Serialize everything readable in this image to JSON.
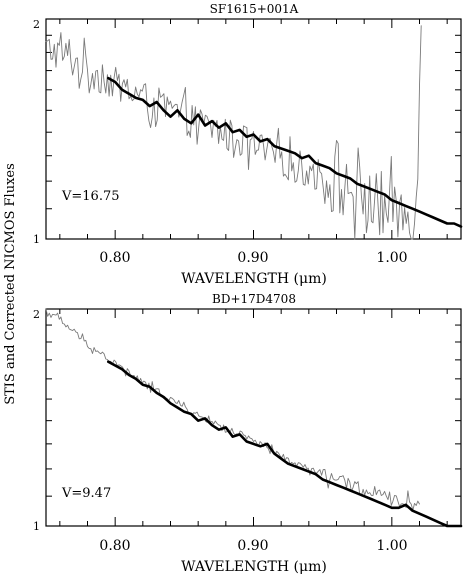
{
  "figure": {
    "ylabel": "STIS and Corrected NICMOS Fluxes"
  },
  "chart_data": [
    {
      "type": "line",
      "title": "SF1615+001A",
      "annotation": "V=16.75",
      "xlabel": "WAVELENGTH (μm)",
      "xlim": [
        0.75,
        1.05
      ],
      "ylim": [
        1,
        2
      ],
      "yscale": "log",
      "xticks": [
        "0.80",
        "0.90",
        "1.00"
      ],
      "yticks": [
        "1",
        "2"
      ],
      "grid": false,
      "series": [
        {
          "style": "thin-gray",
          "color": "#7a7a7a",
          "x": [
            0.75,
            0.76,
            0.77,
            0.78,
            0.79,
            0.8,
            0.81,
            0.82,
            0.83,
            0.84,
            0.85,
            0.86,
            0.87,
            0.88,
            0.89,
            0.9,
            0.91,
            0.92,
            0.93,
            0.94,
            0.95,
            0.96,
            0.97,
            0.98,
            0.99,
            1.0,
            1.005,
            1.01,
            1.015,
            1.018,
            1.02,
            1.022
          ],
          "y": [
            1.82,
            1.8,
            1.75,
            1.71,
            1.67,
            1.63,
            1.6,
            1.56,
            1.53,
            1.5,
            1.47,
            1.44,
            1.42,
            1.39,
            1.37,
            1.34,
            1.31,
            1.29,
            1.26,
            1.24,
            1.22,
            1.19,
            1.17,
            1.14,
            1.12,
            1.1,
            1.09,
            1.08,
            1.08,
            1.15,
            1.6,
            2.0
          ],
          "noise": 0.055
        },
        {
          "style": "thick-black",
          "color": "#000000",
          "x": [
            0.795,
            0.8,
            0.805,
            0.81,
            0.815,
            0.82,
            0.825,
            0.83,
            0.835,
            0.84,
            0.845,
            0.85,
            0.855,
            0.86,
            0.865,
            0.87,
            0.875,
            0.88,
            0.885,
            0.89,
            0.895,
            0.9,
            0.905,
            0.91,
            0.915,
            0.92,
            0.925,
            0.93,
            0.935,
            0.94,
            0.945,
            0.95,
            0.955,
            0.96,
            0.965,
            0.97,
            0.975,
            0.98,
            0.985,
            0.99,
            0.995,
            1.0,
            1.005,
            1.01,
            1.015,
            1.02,
            1.025,
            1.03,
            1.035,
            1.04,
            1.045,
            1.05
          ],
          "y": [
            1.66,
            1.64,
            1.6,
            1.58,
            1.56,
            1.55,
            1.52,
            1.54,
            1.5,
            1.47,
            1.5,
            1.46,
            1.44,
            1.48,
            1.43,
            1.45,
            1.42,
            1.44,
            1.4,
            1.41,
            1.38,
            1.39,
            1.36,
            1.37,
            1.34,
            1.33,
            1.32,
            1.31,
            1.29,
            1.3,
            1.27,
            1.26,
            1.25,
            1.23,
            1.22,
            1.21,
            1.19,
            1.18,
            1.17,
            1.16,
            1.15,
            1.13,
            1.12,
            1.11,
            1.1,
            1.09,
            1.08,
            1.07,
            1.06,
            1.05,
            1.05,
            1.04
          ]
        }
      ]
    },
    {
      "type": "line",
      "title": "BD+17D4708",
      "annotation": "V=9.47",
      "xlabel": "WAVELENGTH (μm)",
      "xlim": [
        0.75,
        1.05
      ],
      "ylim": [
        1,
        2
      ],
      "yscale": "log",
      "xticks": [
        "0.80",
        "0.90",
        "1.00"
      ],
      "yticks": [
        "1",
        "2"
      ],
      "grid": false,
      "series": [
        {
          "style": "thin-gray",
          "color": "#7a7a7a",
          "x": [
            0.75,
            0.76,
            0.77,
            0.78,
            0.79,
            0.8,
            0.81,
            0.82,
            0.83,
            0.84,
            0.85,
            0.86,
            0.87,
            0.88,
            0.89,
            0.9,
            0.91,
            0.92,
            0.93,
            0.94,
            0.95,
            0.96,
            0.97,
            0.98,
            0.99,
            1.0,
            1.01,
            1.02
          ],
          "y": [
            1.99,
            1.93,
            1.86,
            1.79,
            1.73,
            1.68,
            1.63,
            1.58,
            1.54,
            1.5,
            1.46,
            1.42,
            1.4,
            1.36,
            1.34,
            1.31,
            1.28,
            1.25,
            1.22,
            1.2,
            1.18,
            1.16,
            1.14,
            1.12,
            1.1,
            1.09,
            1.08,
            1.07
          ],
          "noise": 0.012
        },
        {
          "style": "thick-black",
          "color": "#000000",
          "x": [
            0.795,
            0.8,
            0.805,
            0.81,
            0.815,
            0.82,
            0.825,
            0.83,
            0.835,
            0.84,
            0.845,
            0.85,
            0.855,
            0.86,
            0.865,
            0.87,
            0.875,
            0.88,
            0.885,
            0.89,
            0.895,
            0.9,
            0.905,
            0.91,
            0.915,
            0.92,
            0.925,
            0.93,
            0.935,
            0.94,
            0.945,
            0.95,
            0.955,
            0.96,
            0.965,
            0.97,
            0.975,
            0.98,
            0.985,
            0.99,
            0.995,
            1.0,
            1.005,
            1.01,
            1.015,
            1.02,
            1.025,
            1.03,
            1.035,
            1.04,
            1.045,
            1.05
          ],
          "y": [
            1.69,
            1.67,
            1.65,
            1.62,
            1.6,
            1.57,
            1.56,
            1.53,
            1.51,
            1.48,
            1.46,
            1.44,
            1.43,
            1.4,
            1.41,
            1.38,
            1.36,
            1.37,
            1.33,
            1.34,
            1.31,
            1.3,
            1.29,
            1.3,
            1.26,
            1.24,
            1.22,
            1.21,
            1.2,
            1.19,
            1.18,
            1.16,
            1.15,
            1.14,
            1.13,
            1.12,
            1.11,
            1.1,
            1.09,
            1.08,
            1.07,
            1.06,
            1.06,
            1.07,
            1.05,
            1.04,
            1.03,
            1.02,
            1.01,
            1.0,
            0.99,
            0.98
          ]
        }
      ]
    }
  ]
}
